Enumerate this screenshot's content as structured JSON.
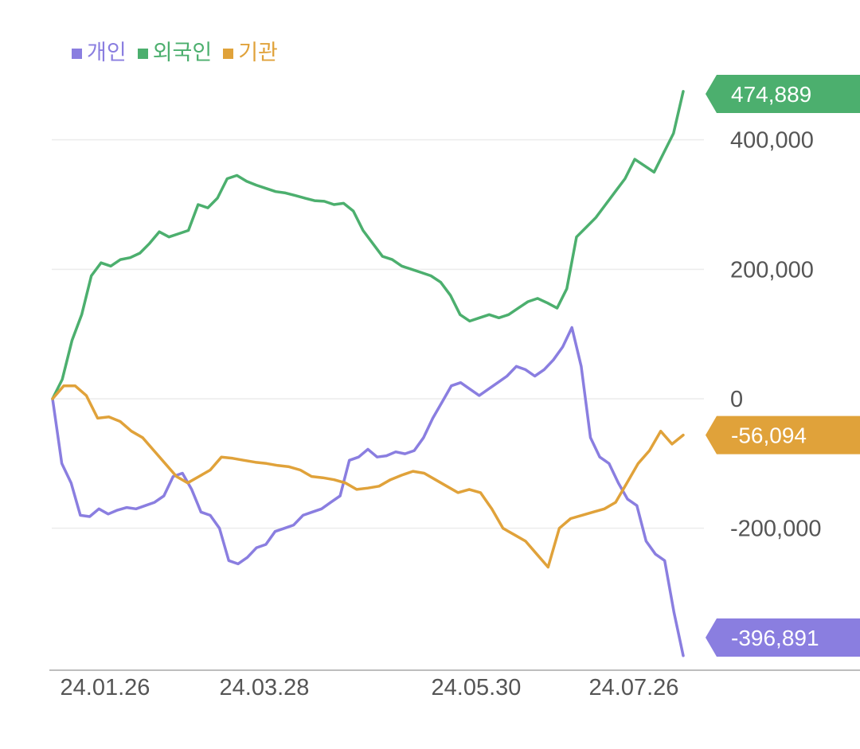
{
  "chart_data": {
    "type": "line",
    "title": "",
    "xlabel": "",
    "ylabel": "",
    "ylim": [
      -396891,
      474889
    ],
    "y_ticks": [
      400000,
      200000,
      0,
      -200000
    ],
    "y_tick_labels": [
      "400,000",
      "200,000",
      "0",
      "-200,000"
    ],
    "x_tick_labels": [
      "24.01.26",
      "24.03.28",
      "24.05.30",
      "24.07.26"
    ],
    "grid": true,
    "legend_position": "top-left",
    "series": [
      {
        "name": "개인",
        "color": "#8a7ee0",
        "last_label": "-396,891",
        "values": [
          0,
          -100000,
          -130000,
          -180000,
          -182000,
          -170000,
          -178000,
          -172000,
          -168000,
          -170000,
          -165000,
          -160000,
          -150000,
          -120000,
          -115000,
          -140000,
          -175000,
          -180000,
          -200000,
          -250000,
          -255000,
          -245000,
          -230000,
          -225000,
          -205000,
          -200000,
          -195000,
          -180000,
          -175000,
          -170000,
          -160000,
          -150000,
          -95000,
          -90000,
          -78000,
          -90000,
          -88000,
          -82000,
          -85000,
          -80000,
          -60000,
          -30000,
          -5000,
          20000,
          25000,
          15000,
          5000,
          15000,
          25000,
          35000,
          50000,
          45000,
          35000,
          45000,
          60000,
          80000,
          110000,
          50000,
          -60000,
          -90000,
          -100000,
          -130000,
          -155000,
          -165000,
          -220000,
          -240000,
          -250000,
          -330000,
          -396891
        ]
      },
      {
        "name": "외국인",
        "color": "#4caf6e",
        "last_label": "474,889",
        "values": [
          0,
          30000,
          90000,
          130000,
          190000,
          210000,
          205000,
          215000,
          218000,
          225000,
          240000,
          258000,
          250000,
          255000,
          260000,
          300000,
          295000,
          310000,
          340000,
          345000,
          336000,
          330000,
          325000,
          320000,
          318000,
          314000,
          310000,
          306000,
          305000,
          300000,
          302000,
          290000,
          260000,
          240000,
          220000,
          215000,
          205000,
          200000,
          195000,
          190000,
          180000,
          160000,
          130000,
          120000,
          125000,
          130000,
          125000,
          130000,
          140000,
          150000,
          155000,
          148000,
          140000,
          170000,
          250000,
          265000,
          280000,
          300000,
          320000,
          340000,
          370000,
          360000,
          350000,
          380000,
          410000,
          474889
        ]
      },
      {
        "name": "기관",
        "color": "#e0a23a",
        "last_label": "-56,094",
        "values": [
          0,
          20000,
          20000,
          5000,
          -30000,
          -28000,
          -35000,
          -50000,
          -60000,
          -80000,
          -100000,
          -120000,
          -130000,
          -120000,
          -110000,
          -90000,
          -92000,
          -95000,
          -98000,
          -100000,
          -103000,
          -105000,
          -110000,
          -120000,
          -122000,
          -125000,
          -130000,
          -140000,
          -138000,
          -135000,
          -125000,
          -118000,
          -112000,
          -115000,
          -125000,
          -135000,
          -145000,
          -140000,
          -145000,
          -170000,
          -200000,
          -210000,
          -220000,
          -240000,
          -260000,
          -200000,
          -185000,
          -180000,
          -175000,
          -170000,
          -160000,
          -130000,
          -100000,
          -80000,
          -50000,
          -70000,
          -56094
        ]
      }
    ]
  }
}
